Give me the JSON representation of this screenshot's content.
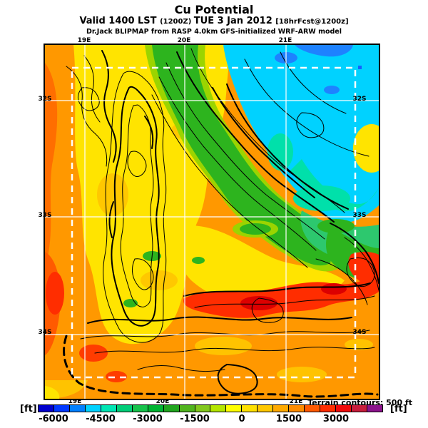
{
  "header": {
    "title": "Cu Potential",
    "valid_prefix": "Valid 1400 LST ",
    "valid_zulu": "(1200Z) ",
    "valid_date": "TUE 3 Jan 2012 ",
    "valid_fcst": "[18hrFcst@1200z]",
    "model_line": "Dr.Jack BLIPMAP from RASP 4.0km GFS-initialized WRF-ARW model"
  },
  "map": {
    "variable": "Cu Potential",
    "units": "ft",
    "lon_labels": [
      "19E",
      "20E",
      "21E"
    ],
    "lat_labels": [
      "32S",
      "33S",
      "34S"
    ],
    "overlay": "white dashed inner domain box, white lat/lon grid, black terrain contours"
  },
  "terrain_note": "Terrain contours: 500 ft",
  "colorbar": {
    "unit_label": "[ft]",
    "tick_labels": [
      "-6000",
      "-4500",
      "-3000",
      "-1500",
      "0",
      "1500",
      "3000"
    ],
    "cell_value_step": 500,
    "range_min": -6500,
    "range_max": 4500,
    "palette": [
      "#0000cd",
      "#0038ff",
      "#0080ff",
      "#00d2ff",
      "#00e6b4",
      "#00cd78",
      "#16c24b",
      "#00b432",
      "#20a51e",
      "#50b41e",
      "#82c81e",
      "#b4e600",
      "#ffff00",
      "#ffe100",
      "#ffc800",
      "#ffaa00",
      "#ff8c00",
      "#ff5a00",
      "#ff2d00",
      "#f00a0a",
      "#c81e3c",
      "#8c148c"
    ]
  }
}
